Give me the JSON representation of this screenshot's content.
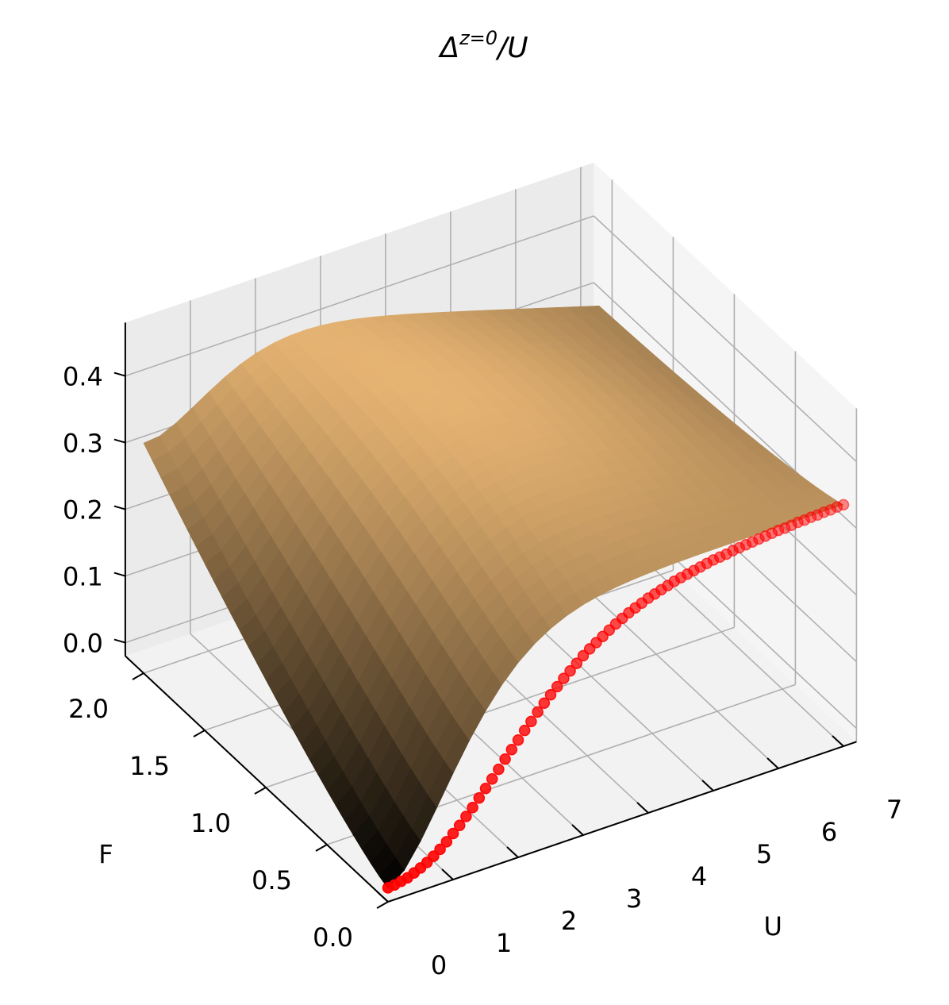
{
  "chart_data": {
    "type": "surface",
    "title": "Δ^{z=0}/U",
    "xlabel": "U",
    "ylabel": "F",
    "zlabel": "",
    "xlim": [
      0,
      7.2
    ],
    "ylim": [
      0,
      2.15
    ],
    "zlim": [
      -0.02,
      0.48
    ],
    "x_ticks": [
      "0",
      "1",
      "2",
      "3",
      "4",
      "5",
      "6",
      "7"
    ],
    "y_ticks": [
      "0.0",
      "0.5",
      "1.0",
      "1.5",
      "2.0"
    ],
    "z_ticks": [
      "0.0",
      "0.1",
      "0.2",
      "0.3",
      "0.4"
    ],
    "grid": true,
    "colormap": "copper",
    "surface_color_low": "#000000",
    "surface_color_high": "#ffc77f",
    "surface": {
      "u_range": [
        0,
        7
      ],
      "f_range": [
        0,
        2
      ],
      "samples": {
        "corner_u0_f0": 0.0,
        "corner_u7_f0": 0.342,
        "corner_u0_f2": 0.325,
        "corner_u7_f2": 0.46,
        "center_u3.5_f1": 0.3
      }
    },
    "series": [
      {
        "type": "scatter",
        "color": "#ff0000",
        "plane": "F = 0",
        "x": [
          0.0,
          0.1,
          0.2,
          0.3,
          0.4,
          0.5,
          0.6,
          0.7,
          0.8,
          0.9,
          1.0,
          1.1,
          1.2,
          1.3,
          1.4,
          1.5,
          1.6,
          1.7,
          1.8,
          1.9,
          2.0,
          2.1,
          2.2,
          2.3,
          2.4,
          2.5,
          2.6,
          2.7,
          2.8,
          2.9,
          3.0,
          3.1,
          3.2,
          3.3,
          3.4,
          3.5,
          3.6,
          3.7,
          3.8,
          3.9,
          4.0,
          4.1,
          4.2,
          4.3,
          4.4,
          4.5,
          4.6,
          4.7,
          4.8,
          4.9,
          5.0,
          5.1,
          5.2,
          5.3,
          5.4,
          5.5,
          5.6,
          5.7,
          5.8,
          5.9,
          6.0,
          6.1,
          6.2,
          6.3,
          6.4,
          6.5,
          6.6,
          6.7,
          6.8,
          6.9,
          7.0
        ],
        "y": [
          0.001,
          0.002,
          0.004,
          0.006,
          0.01,
          0.014,
          0.019,
          0.025,
          0.032,
          0.04,
          0.049,
          0.058,
          0.068,
          0.078,
          0.089,
          0.1,
          0.111,
          0.122,
          0.134,
          0.145,
          0.156,
          0.167,
          0.177,
          0.188,
          0.198,
          0.207,
          0.216,
          0.225,
          0.233,
          0.241,
          0.249,
          0.256,
          0.262,
          0.268,
          0.274,
          0.28,
          0.285,
          0.29,
          0.294,
          0.298,
          0.302,
          0.305,
          0.308,
          0.311,
          0.314,
          0.316,
          0.318,
          0.32,
          0.322,
          0.324,
          0.326,
          0.327,
          0.328,
          0.33,
          0.331,
          0.332,
          0.333,
          0.334,
          0.335,
          0.336,
          0.337,
          0.337,
          0.338,
          0.339,
          0.339,
          0.34,
          0.34,
          0.341,
          0.341,
          0.342,
          0.342
        ]
      }
    ]
  }
}
